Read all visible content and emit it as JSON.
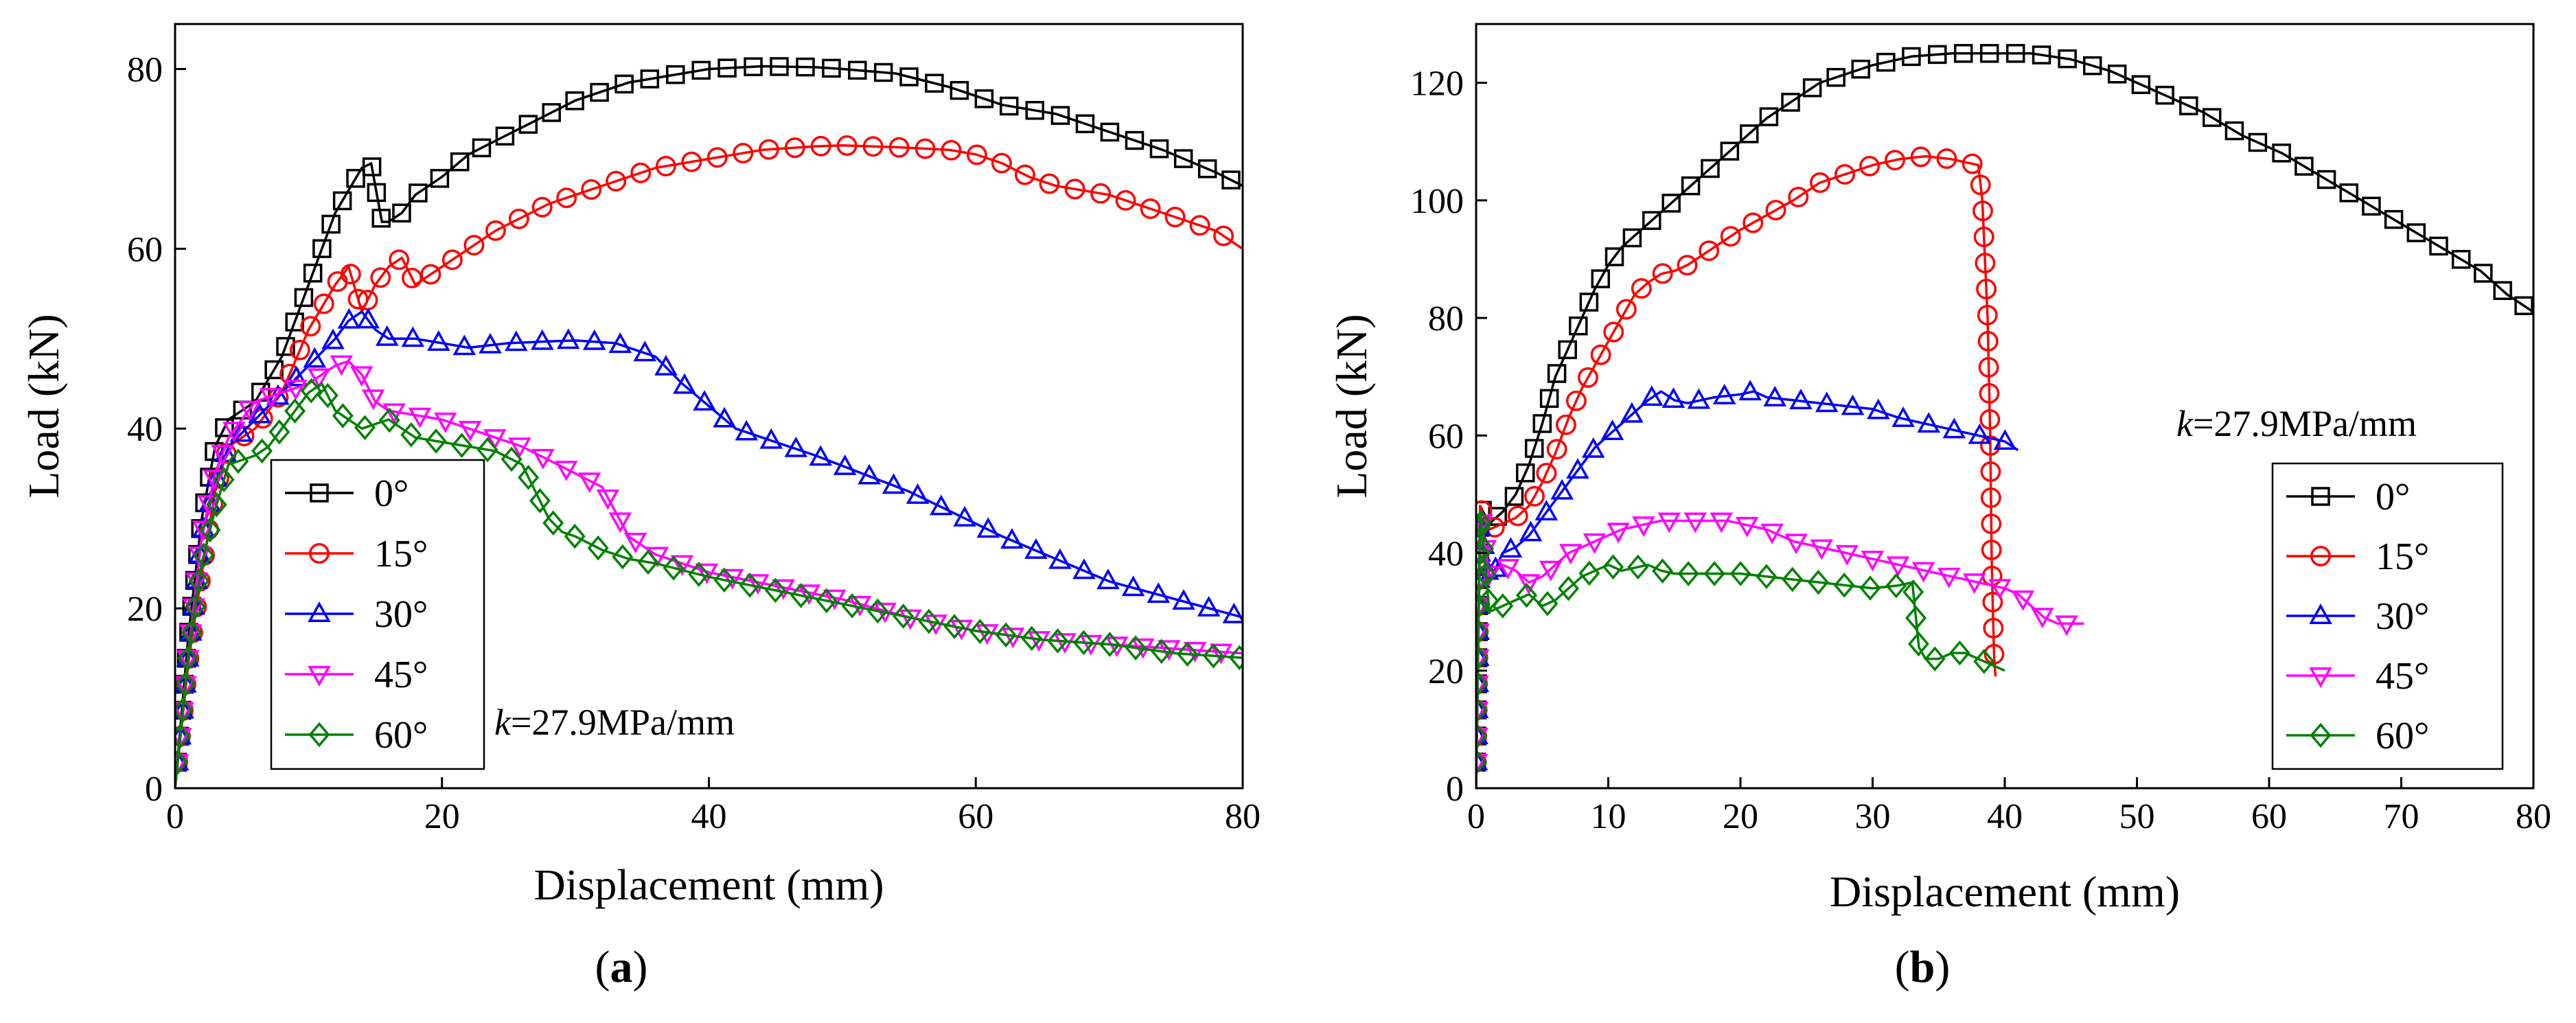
{
  "chart_data": [
    {
      "type": "line",
      "panel_label": "(a)",
      "xlabel": "Displacement (mm)",
      "ylabel": "Load (kN)",
      "xlim": [
        0,
        80
      ],
      "ylim": [
        0,
        85
      ],
      "xticks": [
        0,
        20,
        40,
        60,
        80
      ],
      "yticks": [
        0,
        20,
        40,
        60,
        80
      ],
      "annotation": {
        "k": "k",
        "rest": "=27.9MPa/mm"
      },
      "legend_position": "bottom-left",
      "series": [
        {
          "name": "0°",
          "color": "#000000",
          "marker": "square",
          "x": [
            0,
            1,
            2,
            3,
            4,
            6,
            8,
            10,
            12,
            14,
            14.7,
            15,
            15.5,
            16,
            17,
            18,
            20,
            22,
            24,
            26,
            28,
            30,
            32,
            34,
            36,
            40,
            44,
            48,
            50,
            54,
            58,
            62,
            66,
            70,
            74,
            78,
            80
          ],
          "y": [
            0,
            17,
            30,
            38,
            41,
            43,
            48,
            56,
            64,
            69,
            69.5,
            67,
            63,
            63,
            64,
            66,
            68,
            70.5,
            72,
            73.5,
            75,
            76.5,
            77.5,
            78.5,
            79,
            80,
            80.3,
            80.2,
            80,
            79.5,
            78,
            76,
            75,
            73,
            71,
            68.5,
            67
          ]
        },
        {
          "name": "15°",
          "color": "#ff0000",
          "marker": "circle",
          "x": [
            0,
            1,
            2,
            3,
            4,
            6,
            8,
            10,
            12,
            13,
            14,
            15,
            16,
            17,
            18,
            20,
            22,
            24,
            26,
            28,
            30,
            32,
            36,
            40,
            44,
            48,
            50,
            54,
            58,
            60,
            62,
            64,
            66,
            70,
            74,
            78,
            80
          ],
          "y": [
            0,
            14,
            24,
            33,
            38,
            40,
            44,
            51,
            56,
            58,
            53,
            56,
            58,
            59,
            56,
            58,
            60,
            62,
            63.5,
            65,
            66,
            67,
            69,
            70,
            71,
            71.4,
            71.5,
            71.3,
            71,
            70.5,
            69.5,
            68,
            67,
            66,
            64,
            62,
            60
          ]
        },
        {
          "name": "30°",
          "color": "#0000ff",
          "marker": "triangle-up",
          "x": [
            0,
            1,
            2,
            3,
            4,
            6,
            8,
            10,
            12,
            13,
            14,
            15,
            16,
            18,
            20,
            22,
            25,
            28,
            30,
            33,
            36,
            38,
            42,
            48,
            55,
            62,
            70,
            75,
            80
          ],
          "y": [
            0,
            15,
            28,
            34,
            38,
            41,
            44,
            47,
            50,
            52,
            53,
            51,
            50,
            50,
            49.5,
            49,
            49.5,
            49.7,
            49.8,
            49.5,
            48,
            45,
            40,
            37,
            33,
            28,
            23,
            21,
            19
          ]
        },
        {
          "name": "45°",
          "color": "#ff00ff",
          "marker": "triangle-down",
          "x": [
            0,
            1,
            2,
            3,
            4,
            6,
            8,
            10,
            11,
            12,
            13,
            14,
            15,
            16,
            18,
            20,
            22,
            24,
            26,
            28,
            30,
            32,
            34,
            36,
            40,
            45,
            50,
            55,
            60,
            65,
            70,
            75,
            80
          ],
          "y": [
            0,
            15,
            28,
            35,
            39,
            43,
            44,
            45,
            46,
            47,
            47.5,
            46,
            43,
            42,
            41.5,
            41,
            40,
            39,
            38,
            36.5,
            35,
            33.5,
            28,
            26,
            24,
            22.5,
            21,
            19,
            17.5,
            16.5,
            16,
            15.5,
            15
          ]
        },
        {
          "name": "60°",
          "color": "#008000",
          "marker": "diamond",
          "x": [
            0,
            1,
            2,
            3,
            4,
            5,
            6,
            7,
            8,
            9,
            10,
            11,
            12,
            14,
            16,
            18,
            20,
            22,
            24,
            26,
            27,
            28,
            29,
            30,
            32,
            34,
            36,
            40,
            45,
            50,
            55,
            60,
            65,
            70,
            75,
            80
          ],
          "y": [
            0,
            15,
            25,
            31,
            36,
            36.5,
            37,
            38,
            40,
            42,
            44,
            45,
            42,
            40,
            41,
            39,
            38.5,
            38,
            37.5,
            36,
            33,
            30,
            28.5,
            28,
            26.5,
            25.5,
            25,
            23.5,
            22,
            20.5,
            19,
            17.5,
            16.5,
            16,
            15,
            14.5
          ]
        }
      ]
    },
    {
      "type": "line",
      "panel_label": "(b)",
      "xlabel": "Displacement (mm)",
      "ylabel": "Load (kN)",
      "xlim": [
        0,
        80
      ],
      "ylim": [
        0,
        130
      ],
      "xticks": [
        0,
        10,
        20,
        30,
        40,
        50,
        60,
        70,
        80
      ],
      "yticks": [
        0,
        20,
        40,
        60,
        80,
        100,
        120
      ],
      "annotation": {
        "k": "k",
        "rest": "=27.9MPa/mm"
      },
      "legend_position": "right",
      "series": [
        {
          "name": "0°",
          "color": "#000000",
          "marker": "square",
          "x": [
            0,
            0.3,
            1,
            2,
            3,
            4,
            5,
            6,
            7,
            8,
            9,
            10,
            11,
            12,
            13,
            14,
            15,
            16,
            17,
            18,
            19,
            20,
            22,
            24,
            26,
            28,
            30,
            33,
            36,
            38,
            40,
            42,
            45,
            48,
            52,
            55,
            58,
            61,
            64,
            67,
            70,
            73,
            76,
            78,
            80
          ],
          "y": [
            0,
            48,
            45,
            47,
            50,
            55,
            62,
            70,
            75,
            80,
            85,
            89,
            92,
            94,
            96,
            98,
            100,
            102,
            104,
            106,
            108,
            110,
            114,
            117,
            120,
            121.5,
            123,
            124.5,
            125,
            125,
            125,
            125,
            124,
            122,
            118,
            115,
            111,
            108,
            104,
            100,
            96,
            92,
            88,
            84,
            81
          ]
        },
        {
          "name": "15°",
          "color": "#ff0000",
          "marker": "circle",
          "x": [
            0,
            0.3,
            1,
            2,
            3,
            4,
            5,
            6,
            7,
            8,
            9,
            10,
            11,
            12,
            13,
            14,
            15,
            16,
            18,
            20,
            22,
            24,
            26,
            28,
            30,
            32,
            34,
            36,
            37,
            38,
            38.3,
            38.5,
            38.7,
            38.9,
            39,
            39.1,
            39.2,
            39.3
          ],
          "y": [
            0,
            48,
            44,
            45,
            46,
            48,
            52,
            57,
            63,
            68,
            72,
            76,
            80,
            84,
            86,
            87.5,
            88,
            89,
            92,
            95,
            97.5,
            100,
            103,
            104.5,
            106,
            107,
            107.5,
            107,
            106.5,
            106,
            100,
            90,
            80,
            60,
            40,
            30,
            22,
            19
          ]
        },
        {
          "name": "30°",
          "color": "#0000ff",
          "marker": "triangle-up",
          "x": [
            0,
            0.3,
            1,
            2,
            3,
            4,
            5,
            6,
            7,
            8,
            9,
            10,
            11,
            12,
            13,
            14,
            15,
            16,
            18,
            20,
            21,
            22,
            24,
            26,
            28,
            30,
            32,
            34,
            36,
            38,
            40,
            41
          ],
          "y": [
            0,
            45,
            35,
            40,
            41,
            43,
            46,
            49,
            52,
            55,
            58,
            60,
            62,
            64,
            66,
            67.5,
            66,
            65.5,
            66.5,
            67,
            67.5,
            66.5,
            66,
            65.5,
            65,
            64.5,
            63,
            62,
            61,
            60,
            59,
            57.5
          ]
        },
        {
          "name": "45°",
          "color": "#ff00ff",
          "marker": "triangle-down",
          "x": [
            0,
            0.3,
            1,
            2,
            3,
            4,
            5,
            6,
            7,
            8,
            9,
            10,
            11,
            12,
            13,
            14,
            15,
            16,
            17,
            18,
            19,
            20,
            21,
            22,
            24,
            26,
            28,
            30,
            32,
            34,
            36,
            38,
            40,
            41,
            42,
            43,
            44,
            45,
            46
          ],
          "y": [
            0,
            47,
            36,
            38,
            37,
            35,
            36,
            38,
            40,
            41,
            42,
            43,
            44,
            44.5,
            45,
            45.5,
            45.5,
            45.5,
            45.5,
            45.5,
            45.5,
            45,
            44.5,
            44,
            42,
            41,
            40,
            39,
            38,
            37,
            36,
            35,
            34,
            33,
            31,
            29,
            28,
            28,
            28
          ]
        },
        {
          "name": "60°",
          "color": "#008000",
          "marker": "diamond",
          "x": [
            0,
            0.3,
            1,
            2,
            3,
            4,
            5,
            6,
            7,
            8,
            9,
            10,
            11,
            12,
            13,
            14,
            15,
            16,
            18,
            20,
            22,
            24,
            26,
            28,
            30,
            32,
            33,
            33.5,
            34,
            35,
            36,
            37,
            38,
            39,
            40
          ],
          "y": [
            0,
            47,
            30,
            31,
            32,
            33,
            31,
            32,
            34,
            36,
            37,
            38,
            37,
            37.5,
            38,
            37,
            36.5,
            36.5,
            36.5,
            36.5,
            36,
            35.5,
            35,
            34.5,
            34,
            34.5,
            35,
            24,
            22,
            22,
            23,
            23,
            22,
            21,
            20
          ]
        }
      ]
    }
  ]
}
